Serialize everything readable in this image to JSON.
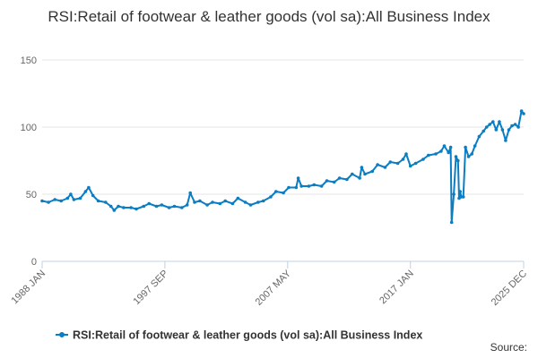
{
  "chart_data": {
    "type": "line",
    "title": "RSI:Retail of footwear & leather goods (vol sa):All Business Index",
    "xlabel": "",
    "ylabel": "",
    "ylim": [
      0,
      150
    ],
    "yticks": [
      0,
      50,
      100,
      150
    ],
    "grid": true,
    "legend": "bottom-center",
    "xrange": [
      "1988-01",
      "2025-12"
    ],
    "xticks": [
      {
        "label": "1988 JAN",
        "date": "1988-01"
      },
      {
        "label": "1997 SEP",
        "date": "1997-09"
      },
      {
        "label": "2007 MAY",
        "date": "2007-05"
      },
      {
        "label": "2017 JAN",
        "date": "2017-01"
      },
      {
        "label": "2025 DEC",
        "date": "2025-12"
      }
    ],
    "series": [
      {
        "name": "RSI:Retail of footwear & leather goods (vol sa):All Business Index",
        "color": "#0b7dc2",
        "points": [
          [
            "1988-01",
            45
          ],
          [
            "1988-07",
            44
          ],
          [
            "1989-01",
            46
          ],
          [
            "1989-07",
            45
          ],
          [
            "1990-01",
            47
          ],
          [
            "1990-04",
            50
          ],
          [
            "1990-07",
            46
          ],
          [
            "1991-01",
            47
          ],
          [
            "1991-06",
            52
          ],
          [
            "1991-09",
            55
          ],
          [
            "1992-01",
            49
          ],
          [
            "1992-06",
            45
          ],
          [
            "1993-01",
            44
          ],
          [
            "1993-06",
            41
          ],
          [
            "1993-09",
            38
          ],
          [
            "1994-01",
            41
          ],
          [
            "1994-06",
            40
          ],
          [
            "1995-01",
            40
          ],
          [
            "1995-06",
            39
          ],
          [
            "1996-01",
            41
          ],
          [
            "1996-06",
            43
          ],
          [
            "1997-01",
            41
          ],
          [
            "1997-06",
            42
          ],
          [
            "1998-01",
            40
          ],
          [
            "1998-06",
            41
          ],
          [
            "1999-01",
            40
          ],
          [
            "1999-06",
            42
          ],
          [
            "1999-09",
            51
          ],
          [
            "2000-01",
            44
          ],
          [
            "2000-06",
            45
          ],
          [
            "2001-01",
            42
          ],
          [
            "2001-06",
            44
          ],
          [
            "2002-01",
            43
          ],
          [
            "2002-06",
            45
          ],
          [
            "2003-01",
            43
          ],
          [
            "2003-06",
            47
          ],
          [
            "2004-01",
            44
          ],
          [
            "2004-06",
            42
          ],
          [
            "2005-01",
            44
          ],
          [
            "2005-06",
            45
          ],
          [
            "2006-01",
            48
          ],
          [
            "2006-06",
            52
          ],
          [
            "2007-01",
            51
          ],
          [
            "2007-06",
            55
          ],
          [
            "2008-01",
            55
          ],
          [
            "2008-03",
            62
          ],
          [
            "2008-06",
            56
          ],
          [
            "2009-01",
            56
          ],
          [
            "2009-06",
            57
          ],
          [
            "2010-01",
            56
          ],
          [
            "2010-06",
            60
          ],
          [
            "2011-01",
            59
          ],
          [
            "2011-06",
            62
          ],
          [
            "2012-01",
            61
          ],
          [
            "2012-06",
            65
          ],
          [
            "2013-01",
            62
          ],
          [
            "2013-03",
            70
          ],
          [
            "2013-06",
            65
          ],
          [
            "2014-01",
            67
          ],
          [
            "2014-06",
            72
          ],
          [
            "2015-01",
            70
          ],
          [
            "2015-06",
            74
          ],
          [
            "2016-01",
            73
          ],
          [
            "2016-06",
            76
          ],
          [
            "2016-09",
            80
          ],
          [
            "2017-01",
            71
          ],
          [
            "2017-06",
            73
          ],
          [
            "2018-01",
            76
          ],
          [
            "2018-06",
            79
          ],
          [
            "2019-01",
            80
          ],
          [
            "2019-06",
            82
          ],
          [
            "2019-09",
            86
          ],
          [
            "2020-01",
            81
          ],
          [
            "2020-03",
            85
          ],
          [
            "2020-04",
            29
          ],
          [
            "2020-06",
            50
          ],
          [
            "2020-08",
            78
          ],
          [
            "2020-10",
            75
          ],
          [
            "2020-11",
            47
          ],
          [
            "2020-12",
            52
          ],
          [
            "2021-01",
            48
          ],
          [
            "2021-03",
            48
          ],
          [
            "2021-05",
            85
          ],
          [
            "2021-08",
            78
          ],
          [
            "2021-11",
            80
          ],
          [
            "2022-02",
            86
          ],
          [
            "2022-06",
            93
          ],
          [
            "2022-10",
            97
          ],
          [
            "2023-01",
            100
          ],
          [
            "2023-04",
            102
          ],
          [
            "2023-07",
            104
          ],
          [
            "2023-10",
            98
          ],
          [
            "2024-01",
            104
          ],
          [
            "2024-04",
            98
          ],
          [
            "2024-07",
            90
          ],
          [
            "2024-10",
            98
          ],
          [
            "2025-01",
            101
          ],
          [
            "2025-04",
            102
          ],
          [
            "2025-07",
            100
          ],
          [
            "2025-10",
            112
          ],
          [
            "2025-12",
            110
          ]
        ]
      }
    ]
  },
  "source_label": "Source:"
}
